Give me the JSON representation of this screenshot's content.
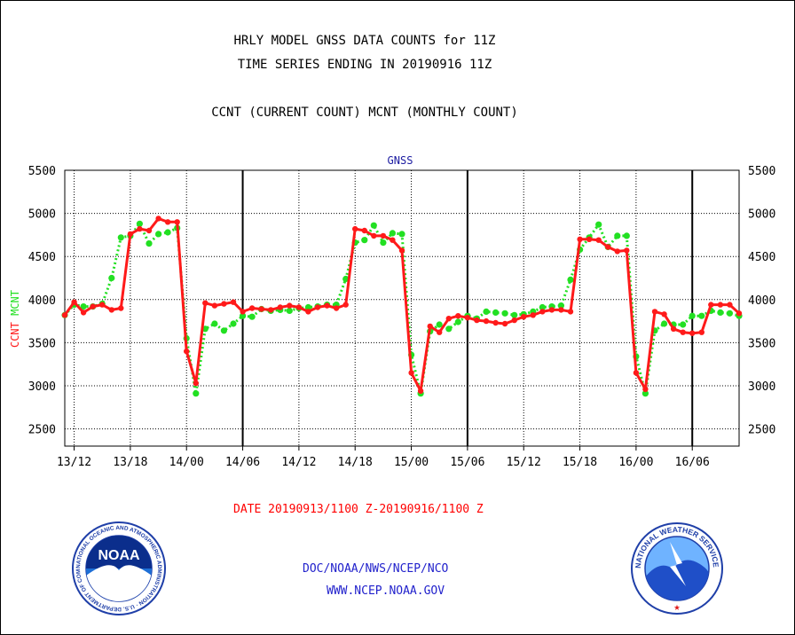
{
  "header": {
    "title_line1": "HRLY MODEL GNSS DATA COUNTS for 11Z",
    "title_line2": "TIME SERIES ENDING IN 20190916 11Z",
    "subtitle": "CCNT (CURRENT COUNT) MCNT (MONTHLY COUNT)"
  },
  "footer": {
    "date_range": "DATE 20190913/1100 Z-20190916/1100 Z",
    "org": "DOC/NOAA/NWS/NCEP/NCO",
    "url": "WWW.NCEP.NOAA.GOV",
    "noaa_logo_text": "NOAA",
    "noaa_ring_text": "NATIONAL OCEANIC AND ATMOSPHERIC ADMINISTRATION · U.S. DEPARTMENT OF COMMERCE ·",
    "nws_ring_text": "NATIONAL WEATHER SERVICE"
  },
  "colors": {
    "ccnt": "#ff1a1a",
    "mcnt": "#22e022",
    "title_red": "#ff0000",
    "footer_blue": "#2222cc",
    "gnss_blue": "#1a1aa0"
  },
  "chart_data": {
    "type": "line",
    "title": "GNSS",
    "ylabel_parts": [
      "CCNT",
      "MCNT"
    ],
    "ylim": [
      2300,
      5500
    ],
    "yticks": [
      2500,
      3000,
      3500,
      4000,
      4500,
      5000,
      5500
    ],
    "x_start_hour": 0,
    "x_end_hour": 72,
    "xticks": [
      {
        "hour": 1,
        "label": "13/12"
      },
      {
        "hour": 7,
        "label": "13/18"
      },
      {
        "hour": 13,
        "label": "14/00"
      },
      {
        "hour": 19,
        "label": "14/06"
      },
      {
        "hour": 25,
        "label": "14/12"
      },
      {
        "hour": 31,
        "label": "14/18"
      },
      {
        "hour": 37,
        "label": "15/00"
      },
      {
        "hour": 43,
        "label": "15/06"
      },
      {
        "hour": 49,
        "label": "15/12"
      },
      {
        "hour": 55,
        "label": "15/18"
      },
      {
        "hour": 61,
        "label": "16/00"
      },
      {
        "hour": 67,
        "label": "16/06"
      }
    ],
    "x_values_note": "hours from 20190913/1100 Z",
    "day_boundaries": [
      19,
      43,
      67
    ],
    "grid": true,
    "series": [
      {
        "name": "CCNT",
        "values": [
          3820,
          3970,
          3850,
          3920,
          3940,
          3880,
          3900,
          4760,
          4820,
          4800,
          4940,
          4900,
          4900,
          3400,
          3030,
          3960,
          3930,
          3950,
          3970,
          3860,
          3900,
          3890,
          3880,
          3910,
          3930,
          3910,
          3860,
          3910,
          3930,
          3900,
          3940,
          4820,
          4800,
          4740,
          4740,
          4690,
          4570,
          3150,
          2940,
          3690,
          3620,
          3780,
          3810,
          3790,
          3760,
          3750,
          3730,
          3720,
          3760,
          3800,
          3820,
          3860,
          3880,
          3880,
          3860,
          4700,
          4700,
          4690,
          4610,
          4560,
          4570,
          3150,
          2960,
          3860,
          3830,
          3660,
          3620,
          3610,
          3620,
          3940,
          3940,
          3940,
          3840
        ]
      },
      {
        "name": "MCNT",
        "values": [
          3820,
          3940,
          3920,
          3920,
          3950,
          4250,
          4720,
          4740,
          4880,
          4650,
          4760,
          4780,
          4830,
          3550,
          2910,
          3660,
          3720,
          3640,
          3720,
          3810,
          3800,
          3890,
          3870,
          3880,
          3870,
          3900,
          3910,
          3920,
          3940,
          3940,
          4240,
          4660,
          4690,
          4860,
          4660,
          4770,
          4760,
          3360,
          2910,
          3630,
          3710,
          3660,
          3740,
          3810,
          3780,
          3860,
          3850,
          3840,
          3820,
          3830,
          3860,
          3910,
          3920,
          3930,
          4230,
          4580,
          4720,
          4870,
          4610,
          4740,
          4740,
          3340,
          2910,
          3640,
          3720,
          3710,
          3710,
          3810,
          3810,
          3870,
          3850,
          3840,
          3810
        ]
      }
    ]
  }
}
